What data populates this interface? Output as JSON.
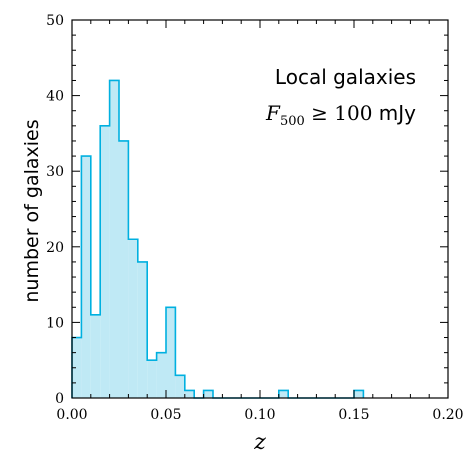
{
  "chart_data": {
    "type": "histogram",
    "xlabel": "z",
    "ylabel": "number of galaxies",
    "xlim": [
      0.0,
      0.2
    ],
    "ylim": [
      0,
      50
    ],
    "x_ticks": [
      "0.00",
      "0.05",
      "0.10",
      "0.15",
      "0.20"
    ],
    "y_ticks": [
      "0",
      "10",
      "20",
      "30",
      "40",
      "50"
    ],
    "bin_width": 0.005,
    "bin_edges_start": 0.0,
    "counts": [
      8,
      32,
      11,
      36,
      42,
      34,
      21,
      18,
      5,
      6,
      12,
      3,
      1,
      0,
      1,
      0,
      0,
      0,
      0,
      0,
      0,
      0,
      1,
      0,
      0,
      0,
      0,
      0,
      0,
      0,
      1
    ],
    "annotation": {
      "title": "Local galaxies",
      "sub_var": "F",
      "sub_subscript": "500",
      "sub_relation": " ≥ 100 ",
      "sub_unit": "mJy"
    },
    "fill_color": "#bfe9f5",
    "edge_color": "#00b0e0",
    "grid": false
  }
}
